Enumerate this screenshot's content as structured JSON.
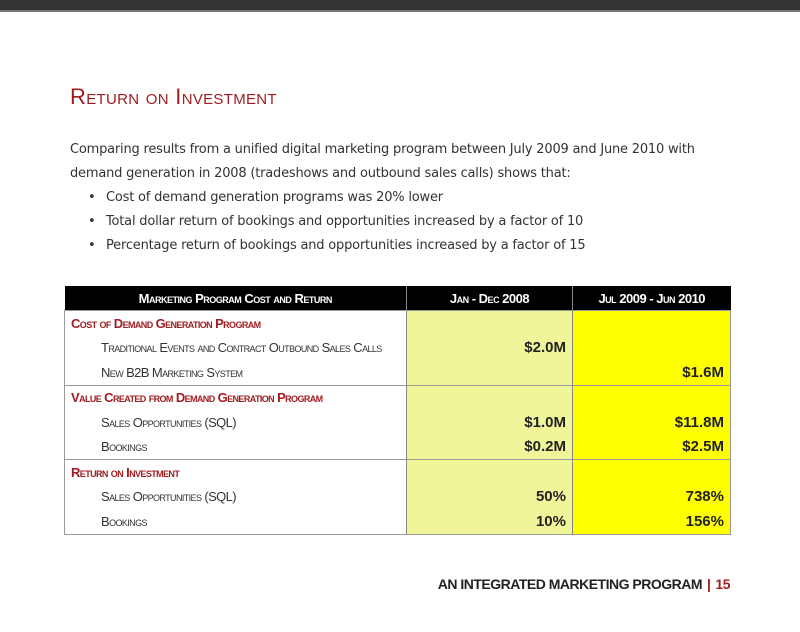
{
  "title": "Return on Investment",
  "intro": "Comparing results from a unified digital marketing program between July 2009 and June 2010 with demand generation in 2008 (tradeshows and outbound sales calls) shows that:",
  "bullets": [
    "Cost of demand generation programs was 20% lower",
    "Total dollar return of bookings and opportunities increased by a factor of 10",
    "Percentage return of bookings and opportunities increased by a factor of 15"
  ],
  "table": {
    "headers": [
      "Marketing Program Cost and Return",
      "Jan - Dec 2008",
      "Jul 2009 - Jun 2010"
    ],
    "sections": [
      {
        "label": "Cost of Demand Generation Program",
        "rows": [
          {
            "label": "Traditional Events and Contract Outbound Sales Calls",
            "v2008": "$2.0M",
            "v2010": ""
          },
          {
            "label": "New B2B Marketing System",
            "v2008": "",
            "v2010": "$1.6M"
          }
        ]
      },
      {
        "label": "Value Created from Demand Generation Program",
        "rows": [
          {
            "label": "Sales Opportunities (SQL)",
            "v2008": "$1.0M",
            "v2010": "$11.8M"
          },
          {
            "label": "Bookings",
            "v2008": "$0.2M",
            "v2010": "$2.5M"
          }
        ]
      },
      {
        "label": "Return on Investment",
        "rows": [
          {
            "label": "Sales Opportunities (SQL)",
            "v2008": "50%",
            "v2010": "738%"
          },
          {
            "label": "Bookings",
            "v2008": "10%",
            "v2010": "156%"
          }
        ]
      }
    ]
  },
  "footer": {
    "text": "AN INTEGRATED MARKETING PROGRAM",
    "separator": "|",
    "page": "15"
  }
}
